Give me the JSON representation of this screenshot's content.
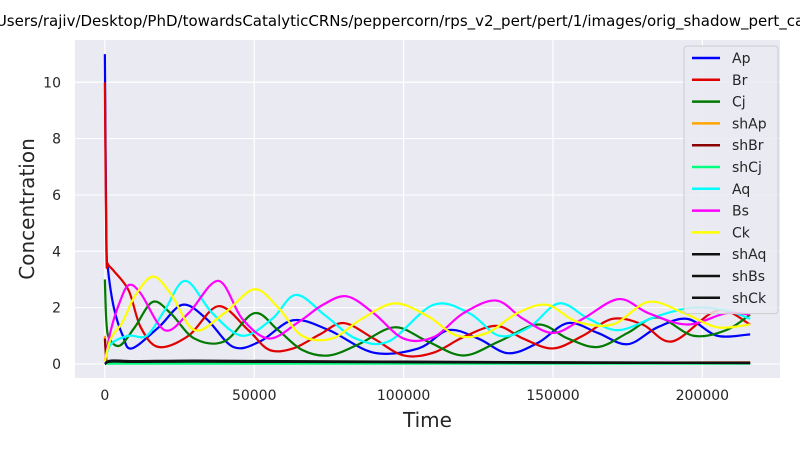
{
  "chart_data": {
    "type": "line",
    "title": "Users/rajiv/Desktop/PhD/towardsCatalyticCRNs/peppercorn/rps_v2_pert/pert/1/images/orig_shadow_pert_ca",
    "xlabel": "Time",
    "ylabel": "Concentration",
    "xlim": [
      -10000,
      226000
    ],
    "ylim": [
      -0.5,
      11.5
    ],
    "xticks": [
      0,
      50000,
      100000,
      150000,
      200000
    ],
    "xtick_labels": [
      "0",
      "50000",
      "100000",
      "150000",
      "200000"
    ],
    "yticks": [
      0,
      2,
      4,
      6,
      8,
      10
    ],
    "ytick_labels": [
      "0",
      "2",
      "4",
      "6",
      "8",
      "10"
    ],
    "grid": true,
    "legend": "top-right",
    "series": [
      {
        "name": "Ap",
        "color": "#0000ff",
        "x": [
          0,
          500,
          1000,
          3000,
          6000,
          9000,
          18000,
          26000,
          34000,
          43000,
          52000,
          63000,
          75000,
          90000,
          105000,
          115000,
          125000,
          135000,
          145000,
          155000,
          165000,
          175000,
          185000,
          195000,
          205000,
          216000
        ],
        "y": [
          11,
          4.5,
          3.4,
          2.0,
          1.0,
          0.55,
          1.3,
          2.1,
          1.6,
          0.6,
          0.8,
          1.55,
          1.2,
          0.4,
          0.55,
          1.2,
          0.9,
          0.38,
          0.75,
          1.45,
          1.1,
          0.7,
          1.3,
          1.6,
          1.0,
          1.05
        ]
      },
      {
        "name": "Br",
        "color": "#e00000",
        "x": [
          0,
          500,
          1000,
          3000,
          8000,
          12000,
          18000,
          28000,
          38000,
          48000,
          55000,
          63000,
          72000,
          80000,
          90000,
          100000,
          110000,
          120000,
          131000,
          140000,
          150000,
          160000,
          170000,
          180000,
          190000,
          205000,
          216000
        ],
        "y": [
          10,
          4.0,
          3.55,
          3.3,
          2.6,
          1.3,
          0.6,
          1.0,
          2.05,
          1.2,
          0.5,
          0.55,
          1.05,
          1.45,
          0.9,
          0.3,
          0.4,
          0.95,
          1.35,
          0.9,
          0.55,
          1.0,
          1.6,
          1.4,
          0.8,
          1.9,
          1.4
        ]
      },
      {
        "name": "Cj",
        "color": "#007a00",
        "x": [
          0,
          500,
          1500,
          5000,
          10000,
          16000,
          22000,
          30000,
          40000,
          50000,
          58000,
          66000,
          75000,
          85000,
          97000,
          108000,
          120000,
          132000,
          145000,
          155000,
          165000,
          175000,
          185000,
          197000,
          208000,
          216000
        ],
        "y": [
          3.0,
          1.5,
          0.9,
          0.65,
          1.3,
          2.2,
          1.8,
          0.9,
          0.8,
          1.8,
          1.2,
          0.5,
          0.3,
          0.7,
          1.3,
          0.8,
          0.3,
          0.8,
          1.4,
          0.9,
          0.6,
          1.1,
          1.65,
          1.0,
          1.2,
          1.75
        ]
      },
      {
        "name": "shAp",
        "color": "#ffa500",
        "x": [
          0,
          500,
          1000,
          216000
        ],
        "y": [
          1.0,
          0.12,
          0.05,
          0.05
        ]
      },
      {
        "name": "shBr",
        "color": "#8b0000",
        "x": [
          0,
          500,
          1000,
          216000
        ],
        "y": [
          0.9,
          0.1,
          0.05,
          0.05
        ]
      },
      {
        "name": "shCj",
        "color": "#00ff7f",
        "x": [
          0,
          1000,
          216000
        ],
        "y": [
          0.02,
          0.01,
          0.01
        ]
      },
      {
        "name": "Aq",
        "color": "#00ffff",
        "x": [
          0,
          2000,
          8000,
          14000,
          20000,
          27000,
          36000,
          46000,
          56000,
          64000,
          74000,
          84000,
          95000,
          110000,
          122000,
          132000,
          142000,
          152000,
          162000,
          172000,
          185000,
          197000,
          208000,
          216000
        ],
        "y": [
          0.1,
          0.7,
          1.0,
          1.0,
          1.9,
          2.95,
          1.8,
          1.0,
          1.6,
          2.45,
          1.7,
          0.9,
          0.8,
          2.1,
          1.8,
          1.0,
          1.3,
          2.15,
          1.6,
          1.2,
          1.7,
          2.0,
          1.9,
          1.6
        ]
      },
      {
        "name": "Bs",
        "color": "#ff00ff",
        "x": [
          0,
          2000,
          5000,
          8000,
          12000,
          20000,
          28000,
          38000,
          46000,
          55000,
          65000,
          73000,
          81000,
          90000,
          100000,
          110000,
          120000,
          131000,
          140000,
          150000,
          160000,
          172000,
          182000,
          195000,
          208000,
          216000
        ],
        "y": [
          0.1,
          1.2,
          2.2,
          2.8,
          2.5,
          1.2,
          1.8,
          2.95,
          1.6,
          0.9,
          1.5,
          2.1,
          2.4,
          1.8,
          0.9,
          0.95,
          1.8,
          2.25,
          1.6,
          1.1,
          1.6,
          2.3,
          1.8,
          1.4,
          1.8,
          1.75
        ]
      },
      {
        "name": "Ck",
        "color": "#ffff00",
        "x": [
          0,
          2000,
          6000,
          10000,
          16000,
          22000,
          30000,
          40000,
          50000,
          58000,
          66000,
          76000,
          86000,
          97000,
          108000,
          118000,
          128000,
          138000,
          148000,
          158000,
          170000,
          182000,
          194000,
          205000,
          216000
        ],
        "y": [
          0.1,
          0.9,
          1.5,
          2.4,
          3.1,
          2.5,
          1.2,
          1.8,
          2.65,
          2.0,
          1.0,
          0.9,
          1.6,
          2.15,
          1.7,
          1.0,
          1.1,
          1.8,
          2.1,
          1.5,
          1.4,
          2.2,
          1.8,
          1.3,
          1.4
        ]
      },
      {
        "name": "shAq",
        "color": "#111111",
        "x": [
          0,
          2000,
          10000,
          30000,
          60000,
          100000,
          150000,
          216000
        ],
        "y": [
          0.0,
          0.12,
          0.1,
          0.12,
          0.1,
          0.08,
          0.06,
          0.04
        ]
      },
      {
        "name": "shBs",
        "color": "#111111",
        "x": [
          0,
          2000,
          10000,
          30000,
          60000,
          100000,
          150000,
          216000
        ],
        "y": [
          0.0,
          0.1,
          0.08,
          0.1,
          0.08,
          0.07,
          0.05,
          0.03
        ]
      },
      {
        "name": "shCk",
        "color": "#111111",
        "x": [
          0,
          2000,
          10000,
          30000,
          60000,
          100000,
          150000,
          216000
        ],
        "y": [
          0.0,
          0.08,
          0.07,
          0.08,
          0.07,
          0.06,
          0.04,
          0.03
        ]
      }
    ]
  }
}
